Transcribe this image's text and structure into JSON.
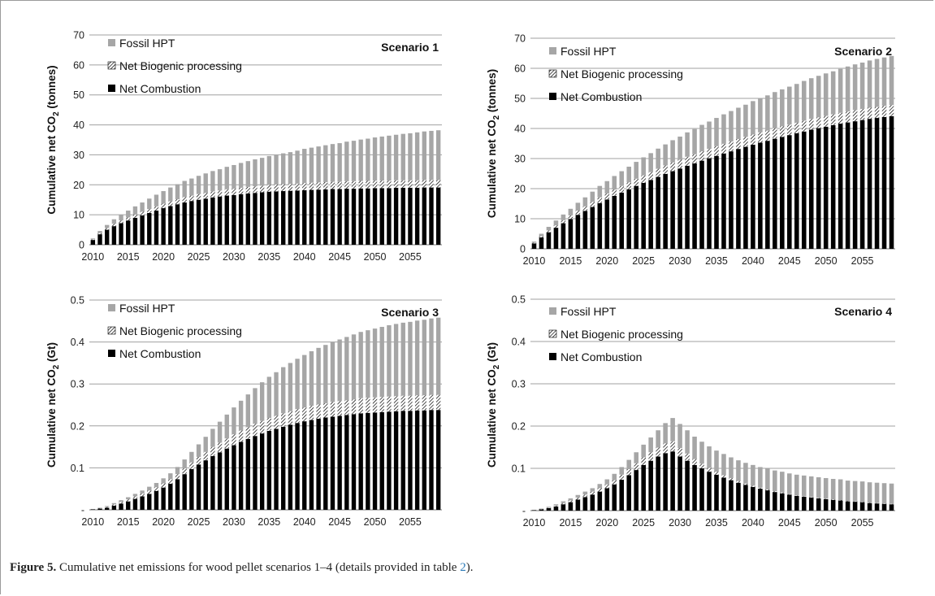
{
  "caption": {
    "label": "Figure 5.",
    "text_before": " Cumulative net emissions for wood pellet scenarios 1–4 (details provided in table ",
    "table_ref": "2",
    "text_after": ")."
  },
  "colors": {
    "fossil": "#a6a6a6",
    "biogenic_stripe": "#000000",
    "combustion": "#000000",
    "grid": "#a0a0a0"
  },
  "chart_data": [
    {
      "type": "bar",
      "stacked": true,
      "title": "Scenario 1",
      "ylabel": "Cumulative net CO2 (tonnes)",
      "ylabel_sub": "2",
      "ylim": [
        0,
        70
      ],
      "yticks": [
        0,
        10,
        20,
        30,
        40,
        50,
        60,
        70
      ],
      "ytick_labels": [
        "0",
        "10",
        "20",
        "30",
        "40",
        "50",
        "60",
        "70"
      ],
      "x_start": 2010,
      "xtick_labels": [
        "2010",
        "2015",
        "2020",
        "2025",
        "2030",
        "2035",
        "2040",
        "2045",
        "2050",
        "2055"
      ],
      "legend": [
        "Fossil HPT",
        "Net Biogenic processing",
        "Net Combustion"
      ],
      "legend_position": "top-left",
      "grid": true,
      "series": [
        {
          "name": "Net Combustion",
          "values": [
            1.6,
            3.5,
            5,
            6.2,
            7.2,
            8.1,
            9,
            9.8,
            10.6,
            11.4,
            12.2,
            12.9,
            13.5,
            14.1,
            14.6,
            15,
            15.4,
            15.8,
            16.1,
            16.4,
            16.6,
            16.9,
            17.1,
            17.3,
            17.5,
            17.7,
            17.8,
            17.9,
            18,
            18.1,
            18.2,
            18.3,
            18.4,
            18.5,
            18.6,
            18.6,
            18.7,
            18.7,
            18.8,
            18.8,
            18.9,
            18.9,
            18.9,
            19,
            19,
            19,
            19,
            19.1,
            19.1,
            19.1
          ]
        },
        {
          "name": "Net Biogenic processing",
          "values": [
            0.2,
            0.4,
            0.6,
            0.8,
            0.9,
            1,
            1.1,
            1.2,
            1.3,
            1.4,
            1.5,
            1.6,
            1.7,
            1.8,
            1.8,
            1.9,
            1.9,
            2,
            2,
            2.1,
            2.1,
            2.1,
            2.2,
            2.2,
            2.2,
            2.3,
            2.3,
            2.3,
            2.3,
            2.3,
            2.4,
            2.4,
            2.4,
            2.4,
            2.4,
            2.4,
            2.5,
            2.5,
            2.5,
            2.5,
            2.5,
            2.5,
            2.5,
            2.5,
            2.5,
            2.5,
            2.5,
            2.5,
            2.5,
            2.5
          ]
        },
        {
          "name": "Fossil HPT",
          "values": [
            0.3,
            0.7,
            1,
            1.5,
            1.9,
            2.3,
            2.7,
            3.1,
            3.5,
            3.9,
            4.2,
            4.6,
            5,
            5.4,
            5.7,
            6.1,
            6.5,
            6.8,
            7.1,
            7.5,
            7.9,
            8.3,
            8.6,
            9,
            9.3,
            9.6,
            10,
            10.3,
            10.6,
            11,
            11.4,
            11.7,
            12,
            12.3,
            12.6,
            12.9,
            13.2,
            13.5,
            13.8,
            14.1,
            14.4,
            14.7,
            15,
            15.2,
            15.5,
            15.7,
            16,
            16.2,
            16.4,
            16.6
          ]
        }
      ]
    },
    {
      "type": "bar",
      "stacked": true,
      "title": "Scenario 2",
      "ylabel": "Cumulative net CO2 (tonnes)",
      "ylabel_sub": "2",
      "ylim": [
        0,
        70
      ],
      "yticks": [
        0,
        10,
        20,
        30,
        40,
        50,
        60,
        70
      ],
      "ytick_labels": [
        "0",
        "10",
        "20",
        "30",
        "40",
        "50",
        "60",
        "70"
      ],
      "x_start": 2010,
      "xtick_labels": [
        "2010",
        "2015",
        "2020",
        "2025",
        "2030",
        "2035",
        "2040",
        "2045",
        "2050",
        "2055"
      ],
      "legend": [
        "Fossil HPT",
        "Net Biogenic processing",
        "Net Combustion"
      ],
      "legend_position": "top-left",
      "grid": true,
      "series": [
        {
          "name": "Net Combustion",
          "values": [
            1.8,
            3.8,
            5.5,
            7,
            8.5,
            9.9,
            11.3,
            12.6,
            13.9,
            15.2,
            16.4,
            17.6,
            18.7,
            19.8,
            20.9,
            21.9,
            22.9,
            23.9,
            24.9,
            25.8,
            26.7,
            27.6,
            28.4,
            29.3,
            30.1,
            30.9,
            31.7,
            32.4,
            33.2,
            33.9,
            34.6,
            35.3,
            35.9,
            36.6,
            37.2,
            37.8,
            38.4,
            39,
            39.6,
            40.1,
            40.6,
            41.1,
            41.6,
            42,
            42.4,
            42.8,
            43.2,
            43.5,
            43.8,
            44.1
          ]
        },
        {
          "name": "Net Biogenic processing",
          "values": [
            0.2,
            0.4,
            0.6,
            0.8,
            1,
            1.2,
            1.4,
            1.5,
            1.7,
            1.9,
            2,
            2.1,
            2.2,
            2.3,
            2.4,
            2.5,
            2.6,
            2.7,
            2.8,
            2.9,
            2.9,
            3,
            3,
            3.1,
            3.1,
            3.2,
            3.2,
            3.3,
            3.3,
            3.3,
            3.4,
            3.4,
            3.4,
            3.5,
            3.5,
            3.5,
            3.5,
            3.6,
            3.6,
            3.6,
            3.6,
            3.6,
            3.6,
            3.7,
            3.7,
            3.7,
            3.7,
            3.7,
            3.7,
            3.7
          ]
        },
        {
          "name": "Fossil HPT",
          "values": [
            0.4,
            0.8,
            1.2,
            1.6,
            1.9,
            2.2,
            2.6,
            3,
            3.4,
            3.8,
            4.1,
            4.5,
            4.9,
            5.2,
            5.6,
            6,
            6.3,
            6.7,
            7,
            7.4,
            7.7,
            8.1,
            8.4,
            8.8,
            9.1,
            9.4,
            9.8,
            10.1,
            10.4,
            10.7,
            11.1,
            11.4,
            11.7,
            12,
            12.3,
            12.6,
            12.9,
            13.2,
            13.5,
            13.8,
            14.1,
            14.3,
            14.6,
            14.9,
            15.2,
            15.4,
            15.7,
            15.9,
            16.1,
            16.3
          ]
        }
      ]
    },
    {
      "type": "bar",
      "stacked": true,
      "title": "Scenario 3",
      "ylabel": "Cumulative net CO2 (Gt)",
      "ylabel_sub": "2",
      "ylim": [
        0,
        0.5
      ],
      "yticks": [
        0,
        0.1,
        0.2,
        0.3,
        0.4,
        0.5
      ],
      "ytick_labels": [
        "-",
        "0.1",
        "0.2",
        "0.3",
        "0.4",
        "0.5"
      ],
      "x_start": 2010,
      "xtick_labels": [
        "2010",
        "2015",
        "2020",
        "2025",
        "2030",
        "2035",
        "2040",
        "2045",
        "2050",
        "2055"
      ],
      "legend": [
        "Fossil HPT",
        "Net Biogenic processing",
        "Net Combustion"
      ],
      "legend_position": "top-left",
      "grid": true,
      "series": [
        {
          "name": "Net Combustion",
          "values": [
            0.001,
            0.003,
            0.005,
            0.01,
            0.015,
            0.02,
            0.026,
            0.032,
            0.038,
            0.045,
            0.053,
            0.062,
            0.073,
            0.085,
            0.097,
            0.108,
            0.118,
            0.128,
            0.137,
            0.146,
            0.154,
            0.162,
            0.169,
            0.176,
            0.182,
            0.188,
            0.193,
            0.198,
            0.203,
            0.207,
            0.211,
            0.214,
            0.217,
            0.22,
            0.222,
            0.224,
            0.226,
            0.228,
            0.23,
            0.231,
            0.232,
            0.233,
            0.234,
            0.235,
            0.236,
            0.236,
            0.237,
            0.237,
            0.238,
            0.238
          ]
        },
        {
          "name": "Net Biogenic processing",
          "values": [
            0.0003,
            0.001,
            0.002,
            0.003,
            0.004,
            0.005,
            0.006,
            0.007,
            0.008,
            0.009,
            0.01,
            0.011,
            0.012,
            0.014,
            0.016,
            0.018,
            0.02,
            0.022,
            0.023,
            0.024,
            0.026,
            0.027,
            0.028,
            0.029,
            0.03,
            0.031,
            0.031,
            0.032,
            0.032,
            0.033,
            0.033,
            0.034,
            0.034,
            0.034,
            0.035,
            0.035,
            0.035,
            0.035,
            0.036,
            0.036,
            0.036,
            0.036,
            0.036,
            0.036,
            0.036,
            0.036,
            0.036,
            0.036,
            0.036,
            0.036
          ]
        },
        {
          "name": "Fossil HPT",
          "values": [
            0.0007,
            0.001,
            0.002,
            0.003,
            0.004,
            0.005,
            0.006,
            0.007,
            0.009,
            0.01,
            0.012,
            0.014,
            0.017,
            0.021,
            0.025,
            0.03,
            0.036,
            0.043,
            0.05,
            0.057,
            0.064,
            0.071,
            0.078,
            0.085,
            0.092,
            0.098,
            0.104,
            0.11,
            0.115,
            0.12,
            0.125,
            0.13,
            0.135,
            0.139,
            0.143,
            0.147,
            0.151,
            0.155,
            0.158,
            0.161,
            0.164,
            0.167,
            0.17,
            0.172,
            0.174,
            0.176,
            0.178,
            0.18,
            0.182,
            0.184
          ]
        }
      ]
    },
    {
      "type": "bar",
      "stacked": true,
      "title": "Scenario 4",
      "ylabel": "Cumulative net CO2 (Gt)",
      "ylabel_sub": "2",
      "ylim": [
        0,
        0.5
      ],
      "yticks": [
        0,
        0.1,
        0.2,
        0.3,
        0.4,
        0.5
      ],
      "ytick_labels": [
        "-",
        "0.1",
        "0.2",
        "0.3",
        "0.4",
        "0.5"
      ],
      "x_start": 2010,
      "xtick_labels": [
        "2010",
        "2015",
        "2020",
        "2025",
        "2030",
        "2035",
        "2040",
        "2045",
        "2050",
        "2055"
      ],
      "legend": [
        "Fossil HPT",
        "Net Biogenic processing",
        "Net Combustion"
      ],
      "legend_position": "top-left",
      "grid": true,
      "series": [
        {
          "name": "Net Combustion",
          "values": [
            0.001,
            0.003,
            0.006,
            0.01,
            0.015,
            0.02,
            0.026,
            0.032,
            0.038,
            0.045,
            0.053,
            0.062,
            0.073,
            0.084,
            0.096,
            0.108,
            0.118,
            0.128,
            0.136,
            0.14,
            0.128,
            0.118,
            0.108,
            0.1,
            0.092,
            0.085,
            0.078,
            0.072,
            0.066,
            0.061,
            0.056,
            0.052,
            0.048,
            0.044,
            0.041,
            0.038,
            0.035,
            0.033,
            0.031,
            0.029,
            0.027,
            0.025,
            0.024,
            0.022,
            0.021,
            0.02,
            0.018,
            0.017,
            0.016,
            0.015
          ]
        },
        {
          "name": "Net Biogenic processing",
          "values": [
            0.0003,
            0.001,
            0.001,
            0.002,
            0.003,
            0.004,
            0.005,
            0.006,
            0.007,
            0.008,
            0.009,
            0.01,
            0.012,
            0.014,
            0.016,
            0.018,
            0.02,
            0.021,
            0.023,
            0.024,
            0.02,
            0.017,
            0.014,
            0.011,
            0.009,
            0.007,
            0.006,
            0.005,
            0.004,
            0.003,
            0.003,
            0.002,
            0.002,
            0.002,
            0.002,
            0.001,
            0.001,
            0.001,
            0.001,
            0.001,
            0.001,
            0.001,
            0.001,
            0.001,
            0.001,
            0.001,
            0.001,
            0.001,
            0.001,
            0.001
          ]
        },
        {
          "name": "Fossil HPT",
          "values": [
            0.0007,
            0.001,
            0.002,
            0.003,
            0.004,
            0.005,
            0.006,
            0.007,
            0.008,
            0.01,
            0.012,
            0.015,
            0.018,
            0.022,
            0.026,
            0.03,
            0.035,
            0.041,
            0.048,
            0.055,
            0.057,
            0.055,
            0.053,
            0.052,
            0.051,
            0.05,
            0.05,
            0.049,
            0.049,
            0.049,
            0.049,
            0.049,
            0.049,
            0.049,
            0.049,
            0.049,
            0.049,
            0.049,
            0.049,
            0.049,
            0.049,
            0.049,
            0.049,
            0.048,
            0.048,
            0.048,
            0.048,
            0.048,
            0.048,
            0.048
          ]
        }
      ]
    }
  ]
}
